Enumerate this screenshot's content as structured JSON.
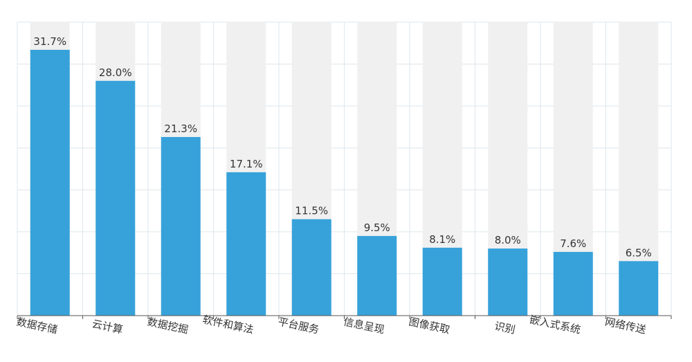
{
  "chart_data": {
    "type": "bar",
    "categories": [
      "数据存储",
      "云计算",
      "数据挖掘",
      "软件和算法",
      "平台服务",
      "信息呈现",
      "图像获取",
      "识别",
      "嵌入式系统",
      "网络传送"
    ],
    "values": [
      31.7,
      28.0,
      21.3,
      17.1,
      11.5,
      9.5,
      8.1,
      8.0,
      7.6,
      6.5
    ],
    "value_labels": [
      "31.7%",
      "28.0%",
      "21.3%",
      "17.1%",
      "11.5%",
      "9.5%",
      "8.1%",
      "8.0%",
      "7.6%",
      "6.5%"
    ],
    "ylim": [
      0,
      35
    ],
    "y_unit": "%",
    "grid": true,
    "background_track": true,
    "bar_color": "#37a2da",
    "track_color": "#f0f0f0",
    "grid_color": "#dde6ec",
    "title": "",
    "xlabel": "",
    "ylabel": ""
  }
}
